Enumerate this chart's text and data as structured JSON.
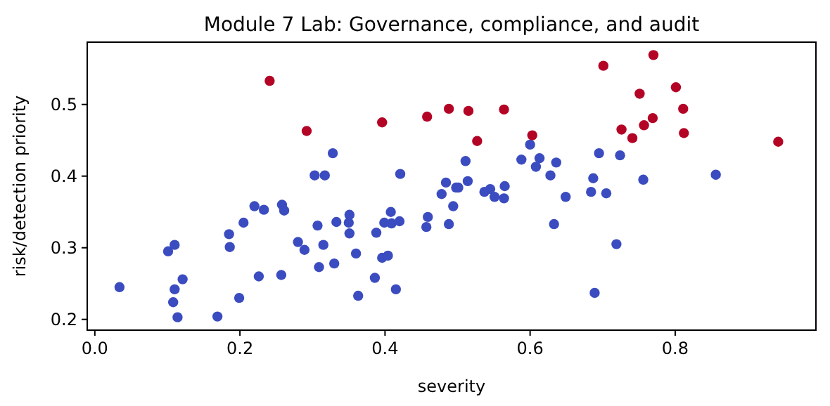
{
  "chart_data": {
    "type": "scatter",
    "title": "Module 7 Lab: Governance, compliance, and audit",
    "xlabel": "severity",
    "ylabel": "risk/detection priority",
    "xlim": [
      -0.0105,
      0.994
    ],
    "ylim": [
      0.185,
      0.587
    ],
    "xticks": [
      {
        "value": 0,
        "label": "0.0"
      },
      0.2,
      0.4,
      0.6,
      0.8
    ],
    "yticks": [
      0.2,
      0.3,
      0.4,
      0.5
    ],
    "grid": false,
    "marker": "circle",
    "series": [
      {
        "color": "#3b4cc0",
        "x": [
          0.034,
          0.101,
          0.11,
          0.11,
          0.108,
          0.114,
          0.121,
          0.169,
          0.185,
          0.186,
          0.199,
          0.205,
          0.22,
          0.226,
          0.233,
          0.257,
          0.258,
          0.261,
          0.28,
          0.289,
          0.303,
          0.317,
          0.328,
          0.307,
          0.309,
          0.315,
          0.33,
          0.333,
          0.351,
          0.35,
          0.351,
          0.36,
          0.363,
          0.386,
          0.388,
          0.396,
          0.404,
          0.399,
          0.408,
          0.409,
          0.42,
          0.415,
          0.421,
          0.459,
          0.457,
          0.488,
          0.478,
          0.484,
          0.494,
          0.498,
          0.501,
          0.511,
          0.514,
          0.537,
          0.545,
          0.551,
          0.565,
          0.564,
          0.588,
          0.6,
          0.608,
          0.613,
          0.628,
          0.636,
          0.633,
          0.649,
          0.684,
          0.687,
          0.695,
          0.705,
          0.689,
          0.719,
          0.724,
          0.756,
          0.856
        ],
        "values": [
          0.245,
          0.295,
          0.304,
          0.242,
          0.224,
          0.203,
          0.256,
          0.204,
          0.319,
          0.301,
          0.23,
          0.335,
          0.358,
          0.26,
          0.353,
          0.262,
          0.36,
          0.352,
          0.308,
          0.297,
          0.401,
          0.401,
          0.432,
          0.331,
          0.273,
          0.304,
          0.278,
          0.336,
          0.346,
          0.335,
          0.32,
          0.292,
          0.233,
          0.258,
          0.321,
          0.286,
          0.289,
          0.335,
          0.35,
          0.334,
          0.337,
          0.242,
          0.403,
          0.343,
          0.329,
          0.333,
          0.375,
          0.391,
          0.358,
          0.384,
          0.384,
          0.421,
          0.393,
          0.378,
          0.382,
          0.371,
          0.386,
          0.369,
          0.423,
          0.444,
          0.413,
          0.425,
          0.401,
          0.419,
          0.333,
          0.371,
          0.378,
          0.397,
          0.432,
          0.376,
          0.237,
          0.305,
          0.429,
          0.395,
          0.402
        ]
      },
      {
        "color": "#b40426",
        "x": [
          0.241,
          0.292,
          0.396,
          0.458,
          0.488,
          0.515,
          0.527,
          0.564,
          0.603,
          0.701,
          0.77,
          0.751,
          0.726,
          0.741,
          0.757,
          0.769,
          0.801,
          0.811,
          0.812,
          0.942
        ],
        "values": [
          0.533,
          0.463,
          0.475,
          0.483,
          0.494,
          0.491,
          0.449,
          0.493,
          0.457,
          0.554,
          0.569,
          0.515,
          0.465,
          0.453,
          0.471,
          0.481,
          0.524,
          0.494,
          0.46,
          0.448
        ]
      }
    ]
  }
}
